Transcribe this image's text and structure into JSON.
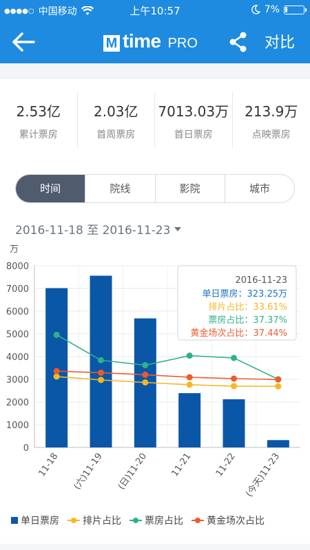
{
  "status": {
    "carrier": "中国移动",
    "time": "上午10:57",
    "battery": "7%"
  },
  "nav": {
    "logo_mark": "M",
    "logo_word": "time",
    "logo_pro": "PRO",
    "compare": "对比"
  },
  "stats": [
    {
      "value": "2.53亿",
      "label": "累计票房"
    },
    {
      "value": "2.03亿",
      "label": "首周票房"
    },
    {
      "value": "7013.03万",
      "label": "首日票房"
    },
    {
      "value": "213.9万",
      "label": "点映票房"
    }
  ],
  "tabs": [
    "时间",
    "院线",
    "影院",
    "城市"
  ],
  "date_range": "2016-11-18 至 2016-11-23",
  "colors": {
    "bar": "#0b57a7",
    "pai": "#f5b820",
    "piao": "#2fb08a",
    "gold": "#ef5a2b",
    "nav": "#1e8be0"
  },
  "chart_data": {
    "type": "bar",
    "unit": "万",
    "categories": [
      "11-18",
      "(六)11-19",
      "(日)11-20",
      "11-21",
      "11-22",
      "(今天)11-23"
    ],
    "ylim": [
      0,
      8000
    ],
    "yticks": [
      0,
      1000,
      2000,
      3000,
      4000,
      5000,
      6000,
      7000,
      8000
    ],
    "bars": {
      "name": "单日票房",
      "values": [
        7013,
        7560,
        5680,
        2390,
        2120,
        323.25
      ]
    },
    "series": [
      {
        "name": "排片占比",
        "values": [
          3120,
          2970,
          2860,
          2760,
          2700,
          2690
        ],
        "color": "#f5b820"
      },
      {
        "name": "票房占比",
        "values": [
          4960,
          3840,
          3620,
          4040,
          3940,
          3000
        ],
        "color": "#2fb08a"
      },
      {
        "name": "黄金场次占比",
        "values": [
          3360,
          3290,
          3200,
          3090,
          3030,
          2990
        ],
        "color": "#ef5a2b"
      }
    ],
    "tooltip": {
      "date": "2016-11-23",
      "rows": [
        {
          "label": "单日票房：",
          "value": "323.25万",
          "color": "#1e72c5"
        },
        {
          "label": "排片占比：",
          "value": "33.61%",
          "color": "#f5b820"
        },
        {
          "label": "票房占比：",
          "value": "37.37%",
          "color": "#2fb08a"
        },
        {
          "label": "黄金场次占比：",
          "value": "37.44%",
          "color": "#ef5a2b"
        }
      ]
    }
  },
  "legend": [
    "单日票房",
    "排片占比",
    "票房占比",
    "黄金场次占比"
  ]
}
